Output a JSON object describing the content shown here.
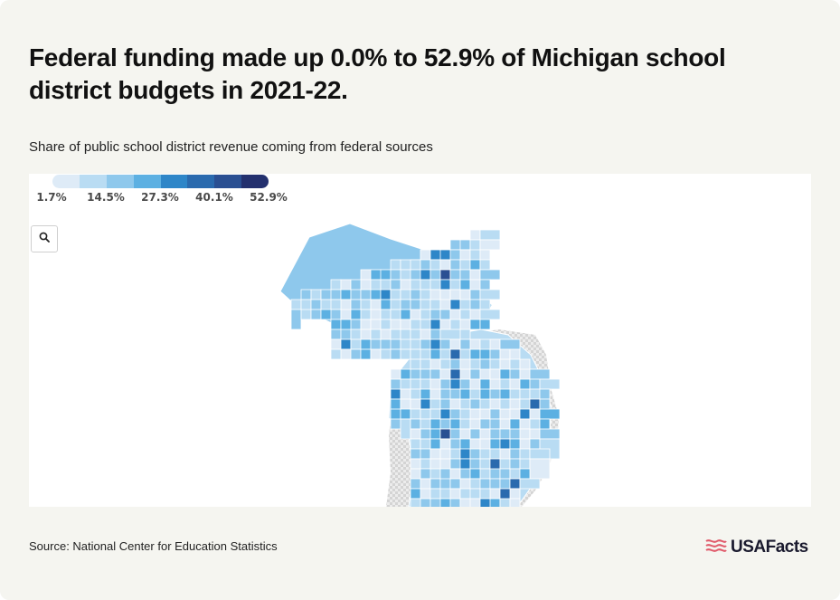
{
  "title": "Federal funding made up 0.0% to 52.9% of Michigan school district budgets in 2021-22.",
  "subtitle": "Share of public school district revenue coming from federal sources",
  "legend": {
    "ticks": [
      "1.7%",
      "14.5%",
      "27.3%",
      "40.1%",
      "52.9%"
    ],
    "colors": [
      "#deebf7",
      "#b9dcf3",
      "#8ec8ec",
      "#5cb0e2",
      "#2e86c8",
      "#2a6aae",
      "#2a4f92",
      "#23306e"
    ]
  },
  "map_controls": {
    "search_icon": "search-icon"
  },
  "colors": {
    "no_data": "#dcdcdc",
    "border": "#ffffff",
    "background": "#f5f5f0"
  },
  "source": "Source: National Center for Education Statistics",
  "brand": {
    "logo_text": "USAFacts",
    "logo_icon": "usa-flag-icon"
  }
}
